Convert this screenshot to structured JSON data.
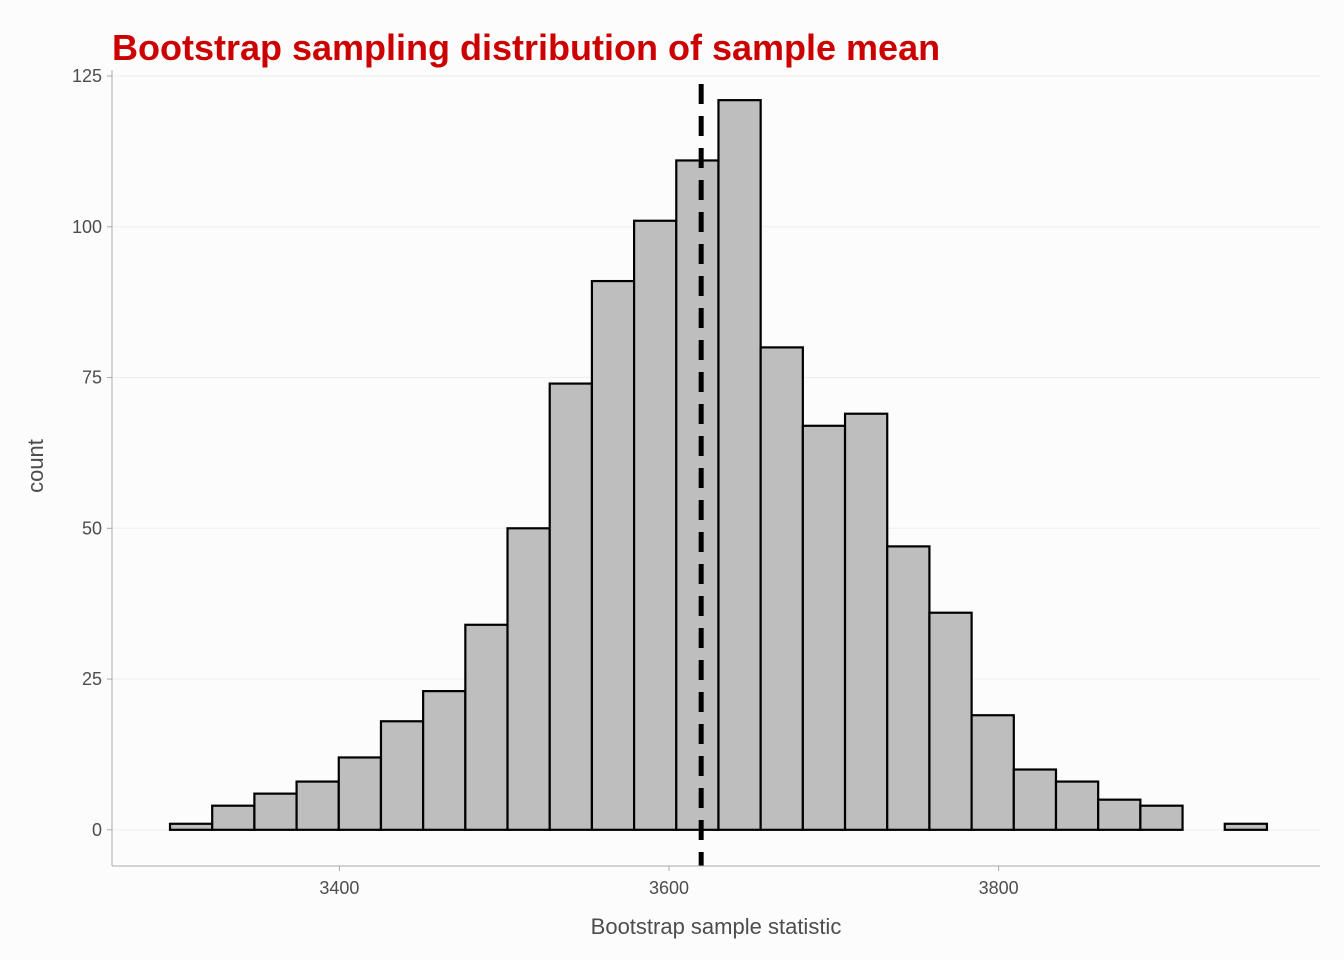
{
  "chart_data": {
    "type": "bar",
    "title": "Bootstrap sampling distribution of sample mean",
    "title_color": "#cc0000",
    "xlabel": "Bootstrap sample statistic",
    "ylabel": "count",
    "xlim": [
      3262,
      3995
    ],
    "ylim": [
      -6,
      126
    ],
    "x_ticks": [
      3400,
      3600,
      3800
    ],
    "y_ticks": [
      0,
      25,
      50,
      75,
      100,
      125
    ],
    "bin_width": 25.6,
    "bin_starts": [
      3297.2,
      3322.8,
      3348.4,
      3374.0,
      3399.6,
      3425.2,
      3450.8,
      3476.4,
      3502.0,
      3527.6,
      3553.2,
      3578.8,
      3604.4,
      3630.0,
      3655.6,
      3681.2,
      3706.8,
      3732.4,
      3758.0,
      3783.6,
      3809.2,
      3834.8,
      3860.4,
      3886.0,
      3911.6,
      3937.2
    ],
    "counts": [
      1,
      4,
      6,
      8,
      12,
      18,
      23,
      34,
      50,
      74,
      91,
      101,
      111,
      121,
      80,
      67,
      69,
      47,
      36,
      19,
      10,
      8,
      5,
      4,
      0,
      1
    ],
    "reference_line": 3619.5,
    "bar_fill": "#bebebe",
    "bar_stroke": "#000000",
    "grid": true,
    "gridline_color": "#eeeeee",
    "background": "#fcfcfc"
  }
}
